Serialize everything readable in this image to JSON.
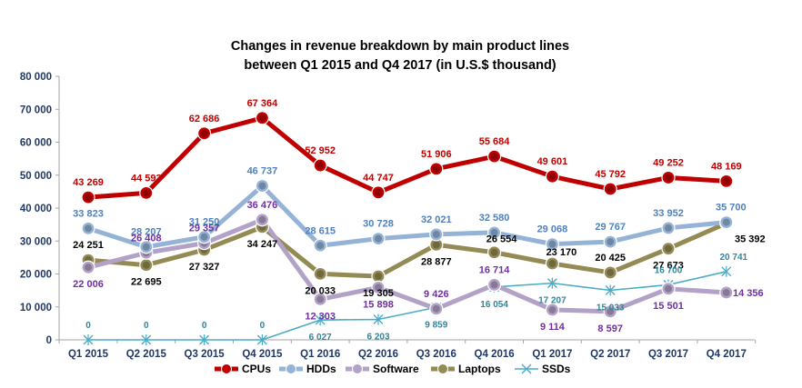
{
  "chart_data": {
    "type": "line",
    "title": [
      "Changes in revenue breakdown by main product lines",
      "between Q1 2015 and Q4 2017 (in U.S.$ thousand)"
    ],
    "xlabel": "",
    "ylabel": "",
    "categories": [
      "Q1 2015",
      "Q2 2015",
      "Q3 2015",
      "Q4 2015",
      "Q1 2016",
      "Q2 2016",
      "Q3 2016",
      "Q4 2016",
      "Q1 2017",
      "Q2 2017",
      "Q3 2017",
      "Q4 2017"
    ],
    "ylim": [
      0,
      80000
    ],
    "yticks": [
      0,
      10000,
      20000,
      30000,
      40000,
      50000,
      60000,
      70000,
      80000
    ],
    "ytick_labels": [
      "0",
      "10 000",
      "20 000",
      "30 000",
      "40 000",
      "50 000",
      "60 000",
      "70 000",
      "80 000"
    ],
    "grid": false,
    "legend_position": "bottom",
    "series": [
      {
        "name": "CPUs",
        "color": "#c00000",
        "marker": "circle",
        "values": [
          43269,
          44593,
          62686,
          67364,
          52952,
          44747,
          51906,
          55684,
          49601,
          45792,
          49252,
          48169
        ],
        "labels": [
          "43 269",
          "44 593",
          "62 686",
          "67 364",
          "52 952",
          "44 747",
          "51 906",
          "55 684",
          "49 601",
          "45 792",
          "49 252",
          "48 169"
        ],
        "label_color": "#c00000"
      },
      {
        "name": "HDDs",
        "color": "#95b3d7",
        "marker": "circle",
        "values": [
          33823,
          28207,
          31250,
          46737,
          28615,
          30728,
          32021,
          32580,
          29068,
          29767,
          33952,
          35700
        ],
        "labels": [
          "33 823",
          "28 207",
          "31 250",
          "46 737",
          "28 615",
          "30 728",
          "32 021",
          "32 580",
          "29 068",
          "29 767",
          "33 952",
          "35 700"
        ],
        "label_color": "#4f81bd"
      },
      {
        "name": "Software",
        "color": "#b3a2c7",
        "marker": "circle",
        "values": [
          22006,
          26408,
          29357,
          36476,
          12303,
          15898,
          9426,
          16714,
          9114,
          8597,
          15501,
          14356
        ],
        "labels": [
          "22 006",
          "26 408",
          "29 357",
          "36 476",
          "12 303",
          "15 898",
          "9 426",
          "16 714",
          "9 114",
          "8 597",
          "15 501",
          "14 356"
        ],
        "label_color": "#7030a0"
      },
      {
        "name": "Laptops",
        "color": "#948a54",
        "marker": "circle",
        "values": [
          24251,
          22695,
          27327,
          34247,
          20033,
          19305,
          28877,
          26554,
          23170,
          20425,
          27673,
          35392
        ],
        "labels": [
          "24 251",
          "22 695",
          "27 327",
          "34 247",
          "20 033",
          "19 305",
          "28 877",
          "26 554",
          "23 170",
          "20 425",
          "27 673",
          "35 392"
        ],
        "label_color": "#000000"
      },
      {
        "name": "SSDs",
        "color": "#4bacc6",
        "marker": "x",
        "values": [
          0,
          0,
          0,
          0,
          6027,
          6203,
          9859,
          16054,
          17207,
          15033,
          16700,
          20741
        ],
        "labels": [
          "0",
          "0",
          "0",
          "0",
          "6 027",
          "6 203",
          "9 859",
          "16 054",
          "17 207",
          "15 033",
          "16 700",
          "20 741"
        ],
        "label_color": "#31859c"
      }
    ]
  }
}
